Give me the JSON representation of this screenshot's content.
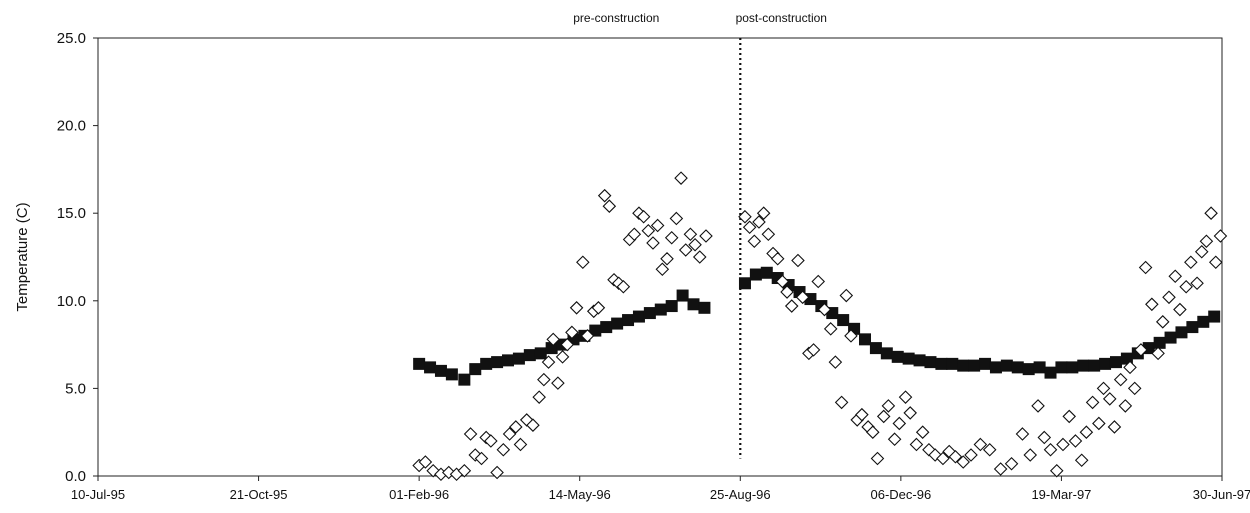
{
  "chart_data": {
    "type": "scatter",
    "title": "",
    "ylabel": "Temperature (C)",
    "xlabel": "",
    "ylim": [
      0,
      25
    ],
    "yticks": [
      "0.0",
      "5.0",
      "10.0",
      "15.0",
      "20.0",
      "25.0"
    ],
    "xlim": [
      "1995-07-10",
      "1997-06-30"
    ],
    "xticks": [
      {
        "date": "1995-07-10",
        "label": "10-Jul-95"
      },
      {
        "date": "1995-10-21",
        "label": "21-Oct-95"
      },
      {
        "date": "1996-02-01",
        "label": "01-Feb-96"
      },
      {
        "date": "1996-05-14",
        "label": "14-May-96"
      },
      {
        "date": "1996-08-25",
        "label": "25-Aug-96"
      },
      {
        "date": "1996-12-06",
        "label": "06-Dec-96"
      },
      {
        "date": "1997-03-19",
        "label": "19-Mar-97"
      },
      {
        "date": "1997-06-30",
        "label": "30-Jun-97"
      }
    ],
    "grid": false,
    "legend": "none",
    "annotations": {
      "divider_date": "1996-08-25",
      "pre_label": "pre-construction",
      "post_label": "post-construction"
    },
    "series": [
      {
        "marker": "filled-square",
        "color": "#111111",
        "points": [
          [
            "1996-02-01",
            6.4
          ],
          [
            "1996-02-08",
            6.2
          ],
          [
            "1996-02-15",
            6.0
          ],
          [
            "1996-02-22",
            5.8
          ],
          [
            "1996-03-01",
            5.5
          ],
          [
            "1996-03-08",
            6.1
          ],
          [
            "1996-03-15",
            6.4
          ],
          [
            "1996-03-22",
            6.5
          ],
          [
            "1996-03-29",
            6.6
          ],
          [
            "1996-04-05",
            6.7
          ],
          [
            "1996-04-12",
            6.9
          ],
          [
            "1996-04-19",
            7.0
          ],
          [
            "1996-04-26",
            7.3
          ],
          [
            "1996-05-03",
            7.5
          ],
          [
            "1996-05-10",
            7.8
          ],
          [
            "1996-05-17",
            8.0
          ],
          [
            "1996-05-24",
            8.3
          ],
          [
            "1996-05-31",
            8.5
          ],
          [
            "1996-06-07",
            8.7
          ],
          [
            "1996-06-14",
            8.9
          ],
          [
            "1996-06-21",
            9.1
          ],
          [
            "1996-06-28",
            9.3
          ],
          [
            "1996-07-05",
            9.5
          ],
          [
            "1996-07-12",
            9.7
          ],
          [
            "1996-07-19",
            10.3
          ],
          [
            "1996-07-26",
            9.8
          ],
          [
            "1996-08-02",
            9.6
          ],
          [
            "1996-08-28",
            11.0
          ],
          [
            "1996-09-04",
            11.5
          ],
          [
            "1996-09-11",
            11.6
          ],
          [
            "1996-09-18",
            11.3
          ],
          [
            "1996-09-25",
            10.9
          ],
          [
            "1996-10-02",
            10.5
          ],
          [
            "1996-10-09",
            10.1
          ],
          [
            "1996-10-16",
            9.7
          ],
          [
            "1996-10-23",
            9.3
          ],
          [
            "1996-10-30",
            8.9
          ],
          [
            "1996-11-06",
            8.4
          ],
          [
            "1996-11-13",
            7.8
          ],
          [
            "1996-11-20",
            7.3
          ],
          [
            "1996-11-27",
            7.0
          ],
          [
            "1996-12-04",
            6.8
          ],
          [
            "1996-12-11",
            6.7
          ],
          [
            "1996-12-18",
            6.6
          ],
          [
            "1996-12-25",
            6.5
          ],
          [
            "1997-01-01",
            6.4
          ],
          [
            "1997-01-08",
            6.4
          ],
          [
            "1997-01-15",
            6.3
          ],
          [
            "1997-01-22",
            6.3
          ],
          [
            "1997-01-29",
            6.4
          ],
          [
            "1997-02-05",
            6.2
          ],
          [
            "1997-02-12",
            6.3
          ],
          [
            "1997-02-19",
            6.2
          ],
          [
            "1997-02-26",
            6.1
          ],
          [
            "1997-03-05",
            6.2
          ],
          [
            "1997-03-12",
            5.9
          ],
          [
            "1997-03-19",
            6.2
          ],
          [
            "1997-03-26",
            6.2
          ],
          [
            "1997-04-02",
            6.3
          ],
          [
            "1997-04-09",
            6.3
          ],
          [
            "1997-04-16",
            6.4
          ],
          [
            "1997-04-23",
            6.5
          ],
          [
            "1997-04-30",
            6.7
          ],
          [
            "1997-05-07",
            7.0
          ],
          [
            "1997-05-14",
            7.3
          ],
          [
            "1997-05-21",
            7.6
          ],
          [
            "1997-05-28",
            7.9
          ],
          [
            "1997-06-04",
            8.2
          ],
          [
            "1997-06-11",
            8.5
          ],
          [
            "1997-06-18",
            8.8
          ],
          [
            "1997-06-25",
            9.1
          ]
        ]
      },
      {
        "marker": "open-diamond",
        "color": "#111111",
        "points": [
          [
            "1996-02-01",
            0.6
          ],
          [
            "1996-02-05",
            0.8
          ],
          [
            "1996-02-10",
            0.3
          ],
          [
            "1996-02-15",
            0.1
          ],
          [
            "1996-02-20",
            0.2
          ],
          [
            "1996-02-25",
            0.1
          ],
          [
            "1996-03-01",
            0.3
          ],
          [
            "1996-03-05",
            2.4
          ],
          [
            "1996-03-08",
            1.2
          ],
          [
            "1996-03-12",
            1.0
          ],
          [
            "1996-03-15",
            2.2
          ],
          [
            "1996-03-18",
            2.0
          ],
          [
            "1996-03-22",
            0.2
          ],
          [
            "1996-03-26",
            1.5
          ],
          [
            "1996-03-30",
            2.4
          ],
          [
            "1996-04-03",
            2.8
          ],
          [
            "1996-04-06",
            1.8
          ],
          [
            "1996-04-10",
            3.2
          ],
          [
            "1996-04-14",
            2.9
          ],
          [
            "1996-04-18",
            4.5
          ],
          [
            "1996-04-21",
            5.5
          ],
          [
            "1996-04-24",
            6.5
          ],
          [
            "1996-04-27",
            7.8
          ],
          [
            "1996-04-30",
            5.3
          ],
          [
            "1996-05-03",
            6.8
          ],
          [
            "1996-05-06",
            7.5
          ],
          [
            "1996-05-09",
            8.2
          ],
          [
            "1996-05-12",
            9.6
          ],
          [
            "1996-05-16",
            12.2
          ],
          [
            "1996-05-19",
            8.0
          ],
          [
            "1996-05-23",
            9.4
          ],
          [
            "1996-05-26",
            9.6
          ],
          [
            "1996-05-30",
            16.0
          ],
          [
            "1996-06-02",
            15.4
          ],
          [
            "1996-06-05",
            11.2
          ],
          [
            "1996-06-08",
            11.0
          ],
          [
            "1996-06-11",
            10.8
          ],
          [
            "1996-06-15",
            13.5
          ],
          [
            "1996-06-18",
            13.8
          ],
          [
            "1996-06-21",
            15.0
          ],
          [
            "1996-06-24",
            14.8
          ],
          [
            "1996-06-27",
            14.0
          ],
          [
            "1996-06-30",
            13.3
          ],
          [
            "1996-07-03",
            14.3
          ],
          [
            "1996-07-06",
            11.8
          ],
          [
            "1996-07-09",
            12.4
          ],
          [
            "1996-07-12",
            13.6
          ],
          [
            "1996-07-15",
            14.7
          ],
          [
            "1996-07-18",
            17.0
          ],
          [
            "1996-07-21",
            12.9
          ],
          [
            "1996-07-24",
            13.8
          ],
          [
            "1996-07-27",
            13.2
          ],
          [
            "1996-07-30",
            12.5
          ],
          [
            "1996-08-03",
            13.7
          ],
          [
            "1996-08-28",
            14.8
          ],
          [
            "1996-08-31",
            14.2
          ],
          [
            "1996-09-03",
            13.4
          ],
          [
            "1996-09-06",
            14.5
          ],
          [
            "1996-09-09",
            15.0
          ],
          [
            "1996-09-12",
            13.8
          ],
          [
            "1996-09-15",
            12.7
          ],
          [
            "1996-09-18",
            12.4
          ],
          [
            "1996-09-21",
            11.1
          ],
          [
            "1996-09-24",
            10.5
          ],
          [
            "1996-09-27",
            9.7
          ],
          [
            "1996-10-01",
            12.3
          ],
          [
            "1996-10-04",
            10.2
          ],
          [
            "1996-10-08",
            7.0
          ],
          [
            "1996-10-11",
            7.2
          ],
          [
            "1996-10-14",
            11.1
          ],
          [
            "1996-10-18",
            9.5
          ],
          [
            "1996-10-22",
            8.4
          ],
          [
            "1996-10-25",
            6.5
          ],
          [
            "1996-10-29",
            4.2
          ],
          [
            "1996-11-01",
            10.3
          ],
          [
            "1996-11-04",
            8.0
          ],
          [
            "1996-11-08",
            3.2
          ],
          [
            "1996-11-11",
            3.5
          ],
          [
            "1996-11-15",
            2.8
          ],
          [
            "1996-11-18",
            2.5
          ],
          [
            "1996-11-21",
            1.0
          ],
          [
            "1996-11-25",
            3.4
          ],
          [
            "1996-11-28",
            4.0
          ],
          [
            "1996-12-02",
            2.1
          ],
          [
            "1996-12-05",
            3.0
          ],
          [
            "1996-12-09",
            4.5
          ],
          [
            "1996-12-12",
            3.6
          ],
          [
            "1996-12-16",
            1.8
          ],
          [
            "1996-12-20",
            2.5
          ],
          [
            "1996-12-24",
            1.5
          ],
          [
            "1996-12-28",
            1.2
          ],
          [
            "1997-01-02",
            1.0
          ],
          [
            "1997-01-06",
            1.4
          ],
          [
            "1997-01-10",
            1.1
          ],
          [
            "1997-01-15",
            0.8
          ],
          [
            "1997-01-20",
            1.2
          ],
          [
            "1997-01-26",
            1.8
          ],
          [
            "1997-02-01",
            1.5
          ],
          [
            "1997-02-08",
            0.4
          ],
          [
            "1997-02-15",
            0.7
          ],
          [
            "1997-02-22",
            2.4
          ],
          [
            "1997-02-27",
            1.2
          ],
          [
            "1997-03-04",
            4.0
          ],
          [
            "1997-03-08",
            2.2
          ],
          [
            "1997-03-12",
            1.5
          ],
          [
            "1997-03-16",
            0.3
          ],
          [
            "1997-03-20",
            1.8
          ],
          [
            "1997-03-24",
            3.4
          ],
          [
            "1997-03-28",
            2.0
          ],
          [
            "1997-04-01",
            0.9
          ],
          [
            "1997-04-04",
            2.5
          ],
          [
            "1997-04-08",
            4.2
          ],
          [
            "1997-04-12",
            3.0
          ],
          [
            "1997-04-15",
            5.0
          ],
          [
            "1997-04-19",
            4.4
          ],
          [
            "1997-04-22",
            2.8
          ],
          [
            "1997-04-26",
            5.5
          ],
          [
            "1997-04-29",
            4.0
          ],
          [
            "1997-05-02",
            6.2
          ],
          [
            "1997-05-05",
            5.0
          ],
          [
            "1997-05-09",
            7.2
          ],
          [
            "1997-05-12",
            11.9
          ],
          [
            "1997-05-16",
            9.8
          ],
          [
            "1997-05-20",
            7.0
          ],
          [
            "1997-05-23",
            8.8
          ],
          [
            "1997-05-27",
            10.2
          ],
          [
            "1997-05-31",
            11.4
          ],
          [
            "1997-06-03",
            9.5
          ],
          [
            "1997-06-07",
            10.8
          ],
          [
            "1997-06-10",
            12.2
          ],
          [
            "1997-06-14",
            11.0
          ],
          [
            "1997-06-17",
            12.8
          ],
          [
            "1997-06-20",
            13.4
          ],
          [
            "1997-06-23",
            15.0
          ],
          [
            "1997-06-26",
            12.2
          ],
          [
            "1997-06-29",
            13.7
          ]
        ]
      }
    ]
  }
}
